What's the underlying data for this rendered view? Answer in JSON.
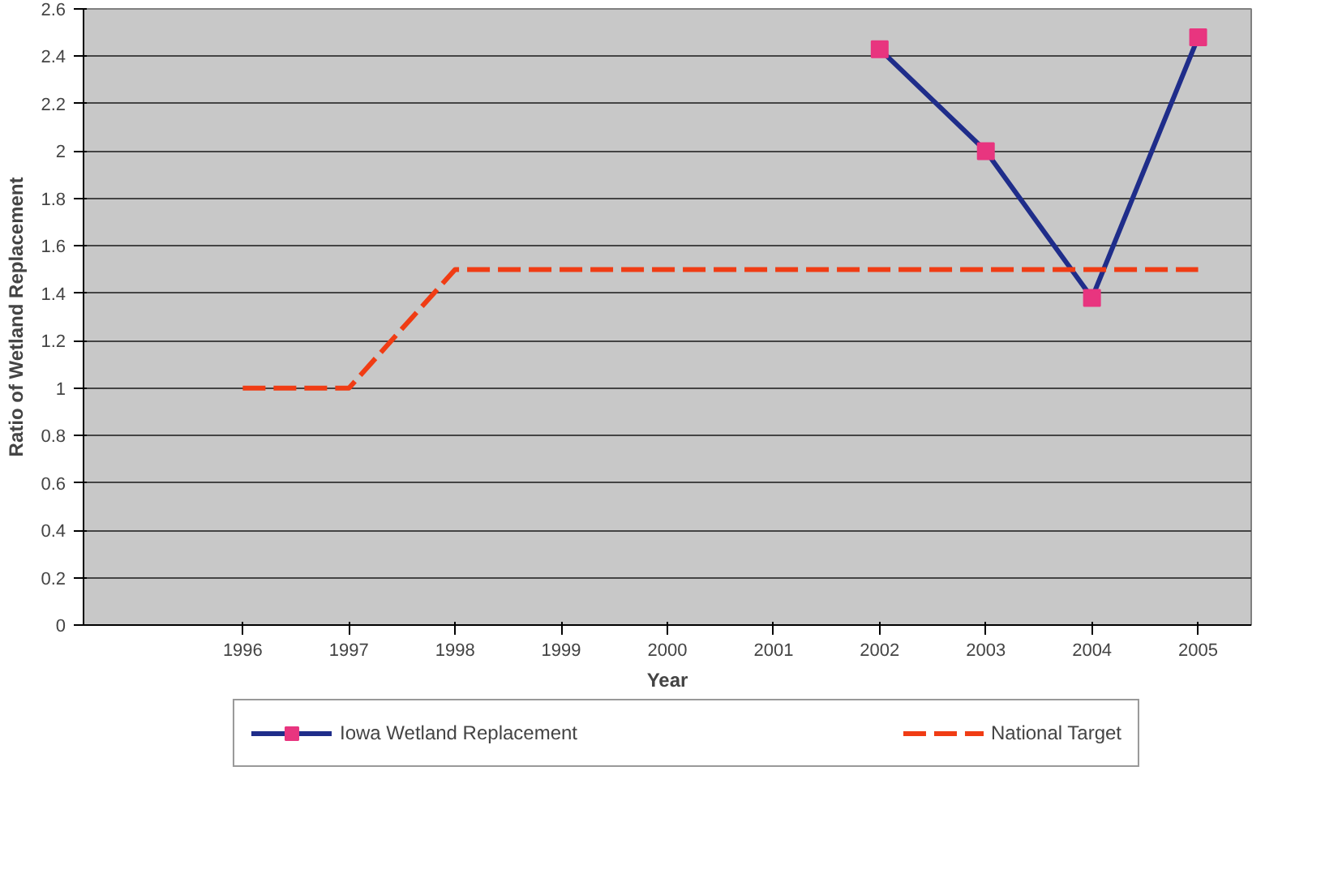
{
  "chart_data": {
    "type": "line",
    "xlabel": "Year",
    "ylabel": "Ratio of Wetland Replacement",
    "categories": [
      null,
      "1996",
      "1997",
      "1998",
      "1999",
      "2000",
      "2001",
      "2002",
      "2003",
      "2004",
      "2005"
    ],
    "series": [
      {
        "name": "Iowa Wetland Replacement",
        "color": "#1f2d8a",
        "marker": "square",
        "line_style": "solid",
        "values": [
          null,
          null,
          null,
          null,
          null,
          null,
          null,
          2.43,
          2.0,
          1.38,
          2.48
        ]
      },
      {
        "name": "National Target",
        "color": "#f03c14",
        "marker": "none",
        "line_style": "dashed",
        "values": [
          null,
          1,
          1,
          1.5,
          1.5,
          1.5,
          1.5,
          1.5,
          1.5,
          1.5,
          1.5
        ]
      }
    ],
    "ylim": [
      0,
      2.6
    ],
    "yticks": [
      0,
      0.2,
      0.4,
      0.6,
      0.8,
      1,
      1.2,
      1.4,
      1.6,
      1.8,
      2,
      2.2,
      2.4,
      2.6
    ],
    "grid": "y",
    "legend": "bottom"
  }
}
